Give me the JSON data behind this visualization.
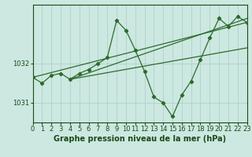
{
  "background_color": "#cce8e0",
  "plot_bg_color": "#cce8e0",
  "line_color": "#2d6a2d",
  "grid_color": "#a8cec8",
  "xlabel": "Graphe pression niveau de la mer (hPa)",
  "xlim": [
    0,
    23
  ],
  "ylim_bottom": 1030.5,
  "ylim_top": 1033.5,
  "yticks": [
    1031,
    1032
  ],
  "xticks": [
    0,
    1,
    2,
    3,
    4,
    5,
    6,
    7,
    8,
    9,
    10,
    11,
    12,
    13,
    14,
    15,
    16,
    17,
    18,
    19,
    20,
    21,
    22,
    23
  ],
  "series1": {
    "x": [
      0,
      1,
      2,
      3,
      4,
      5,
      6,
      7,
      8,
      9,
      10,
      11,
      12,
      13,
      14,
      15,
      16,
      17,
      18,
      19,
      20,
      21,
      22,
      23
    ],
    "y": [
      1031.65,
      1031.5,
      1031.7,
      1031.75,
      1031.6,
      1031.75,
      1031.85,
      1032.0,
      1032.15,
      1033.1,
      1032.85,
      1032.35,
      1031.8,
      1031.15,
      1031.0,
      1030.65,
      1031.2,
      1031.55,
      1032.1,
      1032.65,
      1033.15,
      1032.95,
      1033.2,
      1033.05
    ]
  },
  "series2": {
    "x": [
      0,
      23
    ],
    "y": [
      1031.65,
      1033.05
    ]
  },
  "series3": {
    "x": [
      4,
      23
    ],
    "y": [
      1031.6,
      1033.15
    ]
  },
  "series4": {
    "x": [
      4,
      23
    ],
    "y": [
      1031.6,
      1032.4
    ]
  },
  "tick_label_fontsize": 6,
  "xlabel_fontsize": 7,
  "label_color": "#1a4a1a"
}
